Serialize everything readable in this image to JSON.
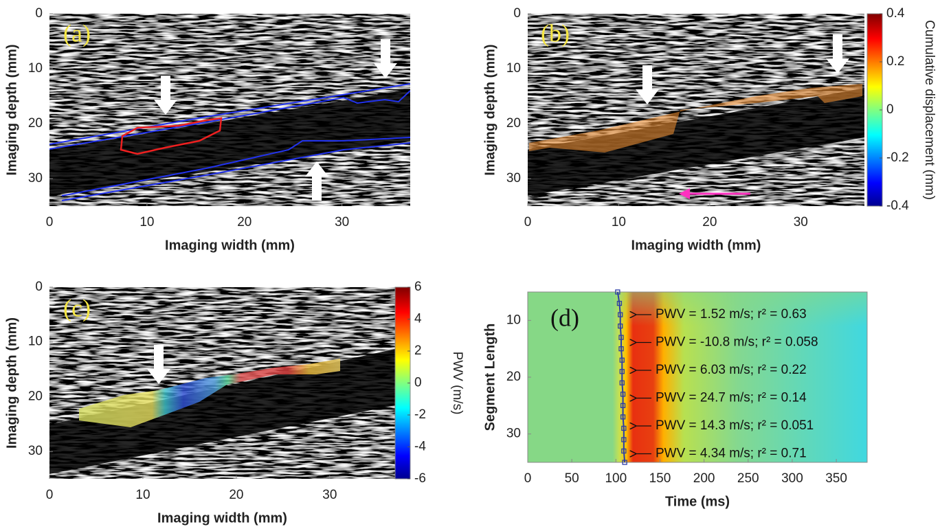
{
  "chart_data": [
    {
      "type": "image",
      "label": "(a)",
      "label_color": "#f5e642",
      "xlabel": "Imaging width (mm)",
      "ylabel": "Imaging depth (mm)",
      "xlim": [
        0,
        37
      ],
      "ylim": [
        35,
        0
      ],
      "xticks": [
        0,
        10,
        20,
        30
      ],
      "yticks": [
        0,
        10,
        20,
        30
      ]
    },
    {
      "type": "image",
      "label": "(b)",
      "label_color": "#f5e642",
      "xlabel": "Imaging width (mm)",
      "ylabel": "Imaging depth (mm)",
      "xlim": [
        0,
        37
      ],
      "ylim": [
        35,
        0
      ],
      "xticks": [
        0,
        10,
        20,
        30
      ],
      "yticks": [
        0,
        10,
        20,
        30
      ],
      "colorbar": {
        "label": "Cumulative displacement (mm)",
        "lim": [
          -0.4,
          0.4
        ],
        "ticks": [
          -0.4,
          -0.2,
          0,
          0.2,
          0.4
        ],
        "colormap": "jet"
      }
    },
    {
      "type": "image",
      "label": "(c)",
      "label_color": "#f5e642",
      "xlabel": "Imaging width (mm)",
      "ylabel": "Imaging depth (mm)",
      "xlim": [
        0,
        37
      ],
      "ylim": [
        35,
        0
      ],
      "xticks": [
        0,
        10,
        20,
        30
      ],
      "yticks": [
        0,
        10,
        20,
        30
      ],
      "colorbar": {
        "label": "PWV (m/s)",
        "lim": [
          -6,
          6
        ],
        "ticks": [
          -6,
          -4,
          -2,
          0,
          2,
          4,
          6
        ],
        "colormap": "jet"
      }
    },
    {
      "type": "heatmap",
      "label": "(d)",
      "label_color": "#111111",
      "xlabel": "Time (ms)",
      "ylabel": "Segment Length",
      "xlim": [
        0,
        385
      ],
      "ylim": [
        35,
        5
      ],
      "xticks": [
        0,
        50,
        100,
        150,
        200,
        250,
        300,
        350
      ],
      "yticks": [
        10,
        20,
        30
      ],
      "line": {
        "color": "#2a3ca8",
        "x": [
          102,
          104,
          105,
          105,
          106,
          106,
          107,
          107,
          107,
          108,
          108,
          108,
          109,
          109,
          109,
          110
        ],
        "y": [
          5,
          7,
          9,
          11,
          13,
          15,
          17,
          19,
          21,
          23,
          25,
          27,
          29,
          31,
          33,
          35
        ]
      },
      "annotations": [
        "PWV = 1.52 m/s; r² = 0.63",
        "PWV = -10.8 m/s; r² = 0.058",
        "PWV = 6.03 m/s; r² = 0.22",
        "PWV = 24.7 m/s; r² = 0.14",
        "PWV = 14.3 m/s; r² = 0.051",
        "PWV = 4.34 m/s; r² = 0.71"
      ]
    }
  ]
}
